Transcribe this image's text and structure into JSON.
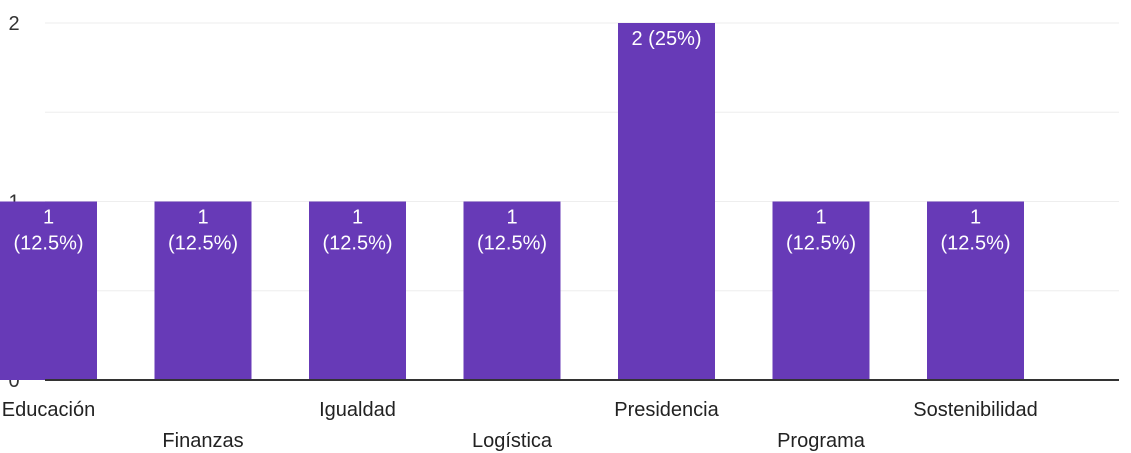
{
  "chart_data": {
    "type": "bar",
    "categories": [
      "Educación",
      "Finanzas",
      "Igualdad",
      "Logística",
      "Presidencia",
      "Programa",
      "Sostenibilidad"
    ],
    "values": [
      1,
      1,
      1,
      1,
      2,
      1,
      1
    ],
    "data_labels": [
      [
        "1",
        "(12.5%)"
      ],
      [
        "1",
        "(12.5%)"
      ],
      [
        "1",
        "(12.5%)"
      ],
      [
        "1",
        "(12.5%)"
      ],
      [
        "2 (25%)"
      ],
      [
        "1",
        "(12.5%)"
      ],
      [
        "1",
        "(12.5%)"
      ]
    ],
    "title": "",
    "xlabel": "",
    "ylabel": "",
    "ylim": [
      0,
      2
    ],
    "yticks": [
      "0",
      "1",
      "2"
    ],
    "grid": true,
    "bar_color": "#673ab7",
    "grid_color": "#eeeeee",
    "axis_color": "#333333"
  }
}
